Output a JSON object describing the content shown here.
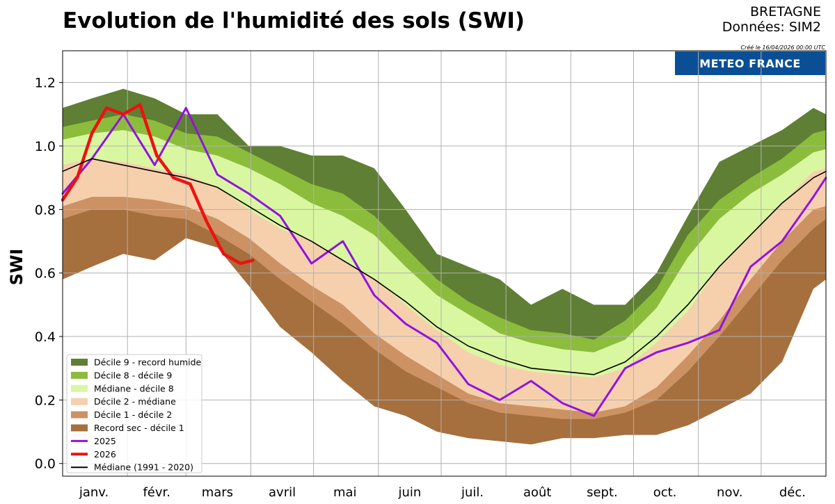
{
  "chart_data": {
    "type": "area",
    "title": "Evolution de l'humidité des sols (SWI)",
    "region": "BRETAGNE",
    "source": "Données: SIM2",
    "created": "Créé le 16/04/2026 00:00 UTC",
    "logo_text": "METEO FRANCE",
    "ylabel": "SWI",
    "ylim": [
      -0.04,
      1.3
    ],
    "xlim": [
      1,
      366
    ],
    "grid": true,
    "legend_position": "lower-left",
    "x_ticks": [
      {
        "label": "janv.",
        "day": 16
      },
      {
        "label": "févr.",
        "day": 46
      },
      {
        "label": "mars",
        "day": 75
      },
      {
        "label": "avril",
        "day": 106
      },
      {
        "label": "mai",
        "day": 136
      },
      {
        "label": "juin",
        "day": 167
      },
      {
        "label": "juil.",
        "day": 197
      },
      {
        "label": "août",
        "day": 228
      },
      {
        "label": "sept.",
        "day": 259
      },
      {
        "label": "oct.",
        "day": 289
      },
      {
        "label": "nov.",
        "day": 320
      },
      {
        "label": "déc.",
        "day": 350
      }
    ],
    "y_ticks": [
      0.0,
      0.2,
      0.4,
      0.6,
      0.8,
      1.0,
      1.2
    ],
    "x_grid_days": [
      1,
      32,
      60,
      91,
      121,
      152,
      182,
      213,
      244,
      274,
      305,
      335
    ],
    "days": [
      1,
      15,
      30,
      45,
      60,
      75,
      90,
      105,
      120,
      135,
      150,
      165,
      180,
      195,
      210,
      225,
      240,
      255,
      270,
      285,
      300,
      315,
      330,
      345,
      360,
      366
    ],
    "series": [
      {
        "name": "Décile 9 - record humide",
        "kind": "band",
        "color": "#5f7f34",
        "values": [
          1.12,
          1.15,
          1.18,
          1.15,
          1.1,
          1.1,
          1.0,
          1.0,
          0.97,
          0.97,
          0.93,
          0.8,
          0.66,
          0.62,
          0.58,
          0.5,
          0.55,
          0.5,
          0.5,
          0.6,
          0.78,
          0.95,
          1.0,
          1.05,
          1.12,
          1.1
        ]
      },
      {
        "name": "Décile 8 - décile 9",
        "kind": "band",
        "color": "#8cbc3c",
        "values": [
          1.06,
          1.08,
          1.1,
          1.08,
          1.04,
          1.03,
          0.98,
          0.93,
          0.88,
          0.85,
          0.78,
          0.68,
          0.58,
          0.51,
          0.46,
          0.42,
          0.41,
          0.39,
          0.45,
          0.55,
          0.72,
          0.83,
          0.9,
          0.96,
          1.04,
          1.05
        ]
      },
      {
        "name": "Médiane - décile 8",
        "kind": "band",
        "color": "#d9f7a1",
        "values": [
          1.02,
          1.04,
          1.05,
          1.03,
          0.99,
          0.97,
          0.93,
          0.88,
          0.82,
          0.78,
          0.72,
          0.62,
          0.53,
          0.47,
          0.41,
          0.38,
          0.36,
          0.35,
          0.39,
          0.49,
          0.65,
          0.77,
          0.85,
          0.91,
          0.98,
          0.99
        ]
      },
      {
        "name": "Décile 2 - médiane",
        "kind": "band",
        "color": "#f6d0ad",
        "values": [
          0.94,
          0.96,
          0.95,
          0.93,
          0.91,
          0.87,
          0.8,
          0.74,
          0.7,
          0.64,
          0.58,
          0.5,
          0.42,
          0.35,
          0.31,
          0.29,
          0.28,
          0.27,
          0.3,
          0.38,
          0.48,
          0.62,
          0.72,
          0.82,
          0.92,
          0.93
        ]
      },
      {
        "name": "Décile 1 - décile 2",
        "kind": "band",
        "color": "#cc9264",
        "values": [
          0.81,
          0.84,
          0.84,
          0.83,
          0.81,
          0.77,
          0.71,
          0.63,
          0.56,
          0.5,
          0.41,
          0.34,
          0.28,
          0.22,
          0.19,
          0.18,
          0.17,
          0.16,
          0.18,
          0.24,
          0.34,
          0.45,
          0.58,
          0.7,
          0.8,
          0.81
        ]
      },
      {
        "name": "Record sec - décile 1",
        "kind": "band",
        "color": "#a66f3e",
        "values": [
          0.77,
          0.8,
          0.8,
          0.78,
          0.77,
          0.72,
          0.66,
          0.58,
          0.51,
          0.44,
          0.36,
          0.29,
          0.24,
          0.19,
          0.16,
          0.15,
          0.14,
          0.14,
          0.16,
          0.2,
          0.29,
          0.4,
          0.52,
          0.64,
          0.74,
          0.77
        ]
      },
      {
        "name": "",
        "kind": "floor",
        "color": "#ffffff",
        "values": [
          0.58,
          0.62,
          0.66,
          0.64,
          0.71,
          0.68,
          0.56,
          0.43,
          0.35,
          0.26,
          0.18,
          0.15,
          0.1,
          0.08,
          0.07,
          0.06,
          0.08,
          0.08,
          0.09,
          0.09,
          0.12,
          0.17,
          0.22,
          0.32,
          0.55,
          0.58
        ]
      },
      {
        "name": "2025",
        "kind": "line",
        "color": "#9112e0",
        "width": 3,
        "values": [
          0.85,
          0.96,
          1.1,
          0.94,
          1.12,
          0.91,
          0.85,
          0.78,
          0.63,
          0.7,
          0.53,
          0.44,
          0.38,
          0.25,
          0.2,
          0.26,
          0.19,
          0.15,
          0.3,
          0.35,
          0.38,
          0.42,
          0.62,
          0.7,
          0.84,
          0.9
        ]
      },
      {
        "name": "2026",
        "kind": "line",
        "color": "#ee1111",
        "width": 4.5,
        "values": [
          0.83,
          0.9,
          1.04,
          1.12,
          1.1,
          1.13,
          0.97,
          0.9,
          0.88,
          0.76,
          0.66,
          0.63,
          0.64
        ]
      },
      {
        "name": "Médiane (1991 - 2020)",
        "kind": "line",
        "color": "#000000",
        "width": 1.6,
        "values": [
          0.92,
          0.96,
          0.94,
          0.92,
          0.9,
          0.87,
          0.81,
          0.75,
          0.7,
          0.64,
          0.58,
          0.51,
          0.43,
          0.37,
          0.33,
          0.3,
          0.29,
          0.28,
          0.32,
          0.4,
          0.5,
          0.62,
          0.72,
          0.82,
          0.9,
          0.92
        ]
      }
    ],
    "series_2026_days": [
      1,
      8,
      15,
      22,
      30,
      38,
      46,
      54,
      62,
      70,
      78,
      86,
      92
    ]
  }
}
